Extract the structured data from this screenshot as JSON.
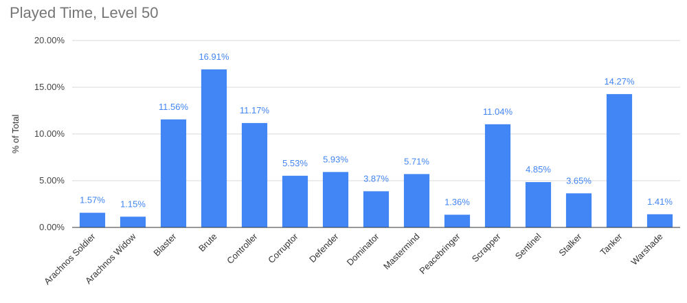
{
  "chart_data": {
    "type": "bar",
    "title": "Played Time, Level 50",
    "xlabel": "",
    "ylabel": "% of Total",
    "ylim": [
      0,
      20
    ],
    "yticks": [
      "0.00%",
      "5.00%",
      "10.00%",
      "15.00%",
      "20.00%"
    ],
    "grid": true,
    "legend": "none",
    "categories": [
      "Arachnos Soldier",
      "Arachnos Widow",
      "Blaster",
      "Brute",
      "Controller",
      "Corruptor",
      "Defender",
      "Dominator",
      "Mastermind",
      "Peacebringer",
      "Scrapper",
      "Sentinel",
      "Stalker",
      "Tanker",
      "Warshade"
    ],
    "values": [
      1.57,
      1.15,
      11.56,
      16.91,
      11.17,
      5.53,
      5.93,
      3.87,
      5.71,
      1.36,
      11.04,
      4.85,
      3.65,
      14.27,
      1.41
    ],
    "data_labels": [
      "1.57%",
      "1.15%",
      "11.56%",
      "16.91%",
      "11.17%",
      "5.53%",
      "5.93%",
      "3.87%",
      "5.71%",
      "1.36%",
      "11.04%",
      "4.85%",
      "3.65%",
      "14.27%",
      "1.41%"
    ],
    "colors": {
      "bar": "#4285f4",
      "label": "#4285f4",
      "grid": "#d9d9d9",
      "baseline": "#333333"
    }
  }
}
